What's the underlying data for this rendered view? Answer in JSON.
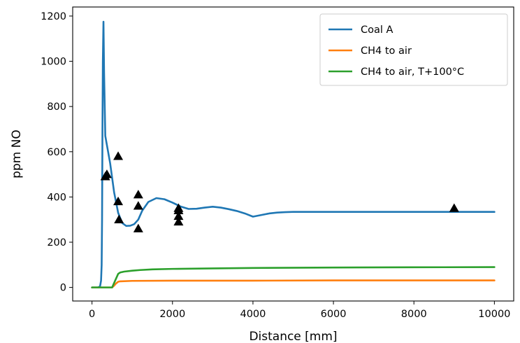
{
  "chart_data": {
    "type": "line",
    "title": "",
    "xlabel": "Distance [mm]",
    "ylabel": "ppm NO",
    "xlim": [
      -480,
      10480
    ],
    "ylim": [
      -60,
      1240
    ],
    "xticks": [
      0,
      2000,
      4000,
      6000,
      8000,
      10000
    ],
    "yticks": [
      0,
      200,
      400,
      600,
      800,
      1000,
      1200
    ],
    "grid": false,
    "legend_position": "top-right",
    "series": [
      {
        "name": "Coal A",
        "color": "#1f77b4",
        "x": [
          0,
          150,
          200,
          225,
          240,
          250,
          260,
          270,
          285,
          300,
          330,
          380,
          450,
          550,
          650,
          750,
          850,
          950,
          1050,
          1150,
          1250,
          1400,
          1600,
          1800,
          2000,
          2200,
          2400,
          2600,
          2800,
          3000,
          3200,
          3400,
          3600,
          3800,
          4000,
          4200,
          4400,
          4600,
          4800,
          5000,
          5500,
          6000,
          7000,
          8000,
          9000,
          10000
        ],
        "y": [
          0,
          0,
          5,
          30,
          100,
          300,
          700,
          1000,
          1175,
          950,
          670,
          620,
          550,
          420,
          330,
          285,
          272,
          273,
          280,
          300,
          340,
          378,
          395,
          390,
          375,
          358,
          347,
          348,
          353,
          357,
          353,
          346,
          338,
          327,
          313,
          320,
          327,
          331,
          333,
          334,
          334,
          334,
          334,
          334,
          334,
          334
        ]
      },
      {
        "name": "CH4 to air",
        "color": "#ff7f0e",
        "x": [
          0,
          500,
          550,
          600,
          650,
          700,
          1000,
          2000,
          4000,
          6000,
          8000,
          10000
        ],
        "y": [
          0,
          0,
          8,
          18,
          25,
          27,
          29,
          30,
          30,
          31,
          31,
          31
        ]
      },
      {
        "name": "CH4 to air, T+100°C",
        "color": "#2ca02c",
        "x": [
          0,
          500,
          550,
          600,
          650,
          700,
          800,
          1000,
          1200,
          1500,
          2000,
          3000,
          4000,
          6000,
          8000,
          10000
        ],
        "y": [
          0,
          0,
          20,
          40,
          60,
          66,
          70,
          74,
          77,
          80,
          82,
          84,
          86,
          88,
          89,
          90
        ]
      },
      {
        "name": "",
        "style": "triangle-markers",
        "color": "#000000",
        "x": [
          330,
          370,
          650,
          650,
          670,
          1150,
          1150,
          1150,
          2150,
          2150,
          2150,
          2150,
          9000
        ],
        "y": [
          490,
          500,
          580,
          380,
          300,
          410,
          360,
          260,
          350,
          340,
          315,
          290,
          350
        ]
      }
    ]
  }
}
